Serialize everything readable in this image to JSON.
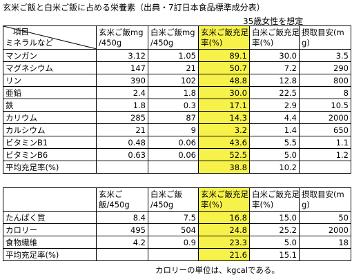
{
  "header": {
    "title": "玄米ご飯と白米ご飯に占める栄養素（出典・7訂日本食品標準成分表）",
    "subtitle": "35歳女性を想定"
  },
  "table1": {
    "corner_top": "項目",
    "corner_bottom": "ミネラルなど",
    "columns": [
      [
        "玄米ご飯mg",
        "/450g"
      ],
      [
        "白米ご飯mg",
        "/450g"
      ],
      [
        "玄米ご飯充足",
        "率(%)"
      ],
      [
        "白米ご飯充足",
        "率(%)"
      ],
      [
        "摂取目安(m",
        "g)"
      ]
    ],
    "rows": [
      [
        "マンガン",
        "3.12",
        "1.05",
        "89.1",
        "30.0",
        "3.5"
      ],
      [
        "マグネシウム",
        "147",
        "21",
        "50.7",
        "7.2",
        "290"
      ],
      [
        "リン",
        "390",
        "102",
        "48.8",
        "12.8",
        "800"
      ],
      [
        "亜鉛",
        "2.4",
        "1.8",
        "30.0",
        "22.5",
        "8"
      ],
      [
        "鉄",
        "1.8",
        "0.3",
        "17.1",
        "2.9",
        "10.5"
      ],
      [
        "カリウム",
        "285",
        "87",
        "14.3",
        "4.4",
        "2000"
      ],
      [
        "カルシウム",
        "21",
        "9",
        "3.2",
        "1.4",
        "650"
      ],
      [
        "ビタミンB1",
        "0.48",
        "0.06",
        "43.6",
        "5.5",
        "1.1"
      ],
      [
        "ビタミンB6",
        "0.63",
        "0.06",
        "52.5",
        "5.0",
        "1.2"
      ],
      [
        "平均充足率(%)",
        null,
        null,
        "38.8",
        "10.2",
        null
      ]
    ]
  },
  "table2": {
    "columns": [
      [
        "玄米ご",
        "飯/450g"
      ],
      [
        "白米ご飯",
        "/450g"
      ],
      [
        "玄米ご飯充足",
        "率(%)"
      ],
      [
        "白米ご飯充足",
        "率(%)"
      ],
      [
        "摂取目安(m",
        "g)"
      ]
    ],
    "rows": [
      [
        "たんぱく質",
        "8.4",
        "7.5",
        "16.8",
        "15.0",
        "50"
      ],
      [
        "カロリー",
        "495",
        "504",
        "24.8",
        "25.2",
        "2000"
      ],
      [
        "食物繊維",
        "4.2",
        "0.9",
        "23.3",
        "5.0",
        "18"
      ],
      [
        "平均充足率(%)",
        null,
        null,
        "21.6",
        "15.1",
        null
      ]
    ]
  },
  "footnote": "カロリーの単位は、kgcalである。"
}
